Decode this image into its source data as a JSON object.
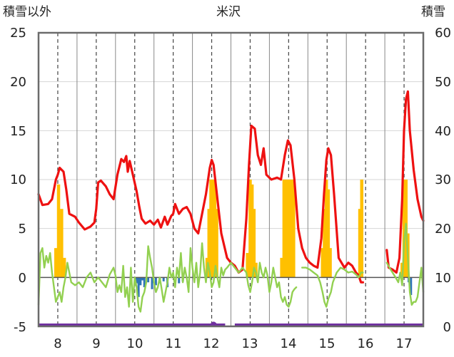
{
  "chart_data": {
    "type": "line",
    "title": "米沢",
    "y_left_label": "積雪以外",
    "y_right_label": "積雪",
    "y_left_range": [
      -5,
      25
    ],
    "y_right_range": [
      0,
      60
    ],
    "y_left_ticks": [
      "25",
      "20",
      "15",
      "10",
      "5",
      "0",
      "-5"
    ],
    "y_right_ticks": [
      "60",
      "50",
      "40",
      "30",
      "20",
      "10",
      "0"
    ],
    "x_range": [
      7.5,
      17.5
    ],
    "x_ticks": [
      "8",
      "9",
      "10",
      "11",
      "12",
      "13",
      "14",
      "15",
      "16",
      "17"
    ],
    "grid": true,
    "colors": {
      "temperature": "#ee1111",
      "wind": "#92d050",
      "snow_depth": "#ffc000",
      "precipitation": "#2e75b6",
      "bottom_series": "#7030a0"
    },
    "series": [
      {
        "key": "temperature",
        "axis": "left",
        "points": [
          [
            7.5,
            8.5
          ],
          [
            7.6,
            7.4
          ],
          [
            7.75,
            7.5
          ],
          [
            7.85,
            8.0
          ],
          [
            7.95,
            10.0
          ],
          [
            8.0,
            10.5
          ],
          [
            8.05,
            11.2
          ],
          [
            8.15,
            10.8
          ],
          [
            8.22,
            9.0
          ],
          [
            8.3,
            6.5
          ],
          [
            8.45,
            6.2
          ],
          [
            8.55,
            5.6
          ],
          [
            8.7,
            4.9
          ],
          [
            8.85,
            5.2
          ],
          [
            8.95,
            5.6
          ],
          [
            9.0,
            7.0
          ],
          [
            9.05,
            9.7
          ],
          [
            9.12,
            9.9
          ],
          [
            9.25,
            9.3
          ],
          [
            9.35,
            8.5
          ],
          [
            9.45,
            8.0
          ],
          [
            9.55,
            10.5
          ],
          [
            9.65,
            12.1
          ],
          [
            9.72,
            11.8
          ],
          [
            9.78,
            12.4
          ],
          [
            9.82,
            10.8
          ],
          [
            9.87,
            11.9
          ],
          [
            9.95,
            10.5
          ],
          [
            10.05,
            8.8
          ],
          [
            10.12,
            7.2
          ],
          [
            10.18,
            6.0
          ],
          [
            10.28,
            5.5
          ],
          [
            10.4,
            5.8
          ],
          [
            10.5,
            5.4
          ],
          [
            10.6,
            5.9
          ],
          [
            10.68,
            5.1
          ],
          [
            10.78,
            6.2
          ],
          [
            10.85,
            5.4
          ],
          [
            10.95,
            6.3
          ],
          [
            11.0,
            6.5
          ],
          [
            11.05,
            7.5
          ],
          [
            11.15,
            6.5
          ],
          [
            11.25,
            7.0
          ],
          [
            11.35,
            7.2
          ],
          [
            11.45,
            6.5
          ],
          [
            11.55,
            5.0
          ],
          [
            11.65,
            4.5
          ],
          [
            11.75,
            6.5
          ],
          [
            11.85,
            8.5
          ],
          [
            11.95,
            11.2
          ],
          [
            12.0,
            12.0
          ],
          [
            12.05,
            11.5
          ],
          [
            12.15,
            8.0
          ],
          [
            12.25,
            4.5
          ],
          [
            12.4,
            2.0
          ],
          [
            12.5,
            1.5
          ],
          [
            12.6,
            1.2
          ],
          [
            12.7,
            0.5
          ],
          [
            12.8,
            0.8
          ],
          [
            12.9,
            6.0
          ],
          [
            12.97,
            11.5
          ],
          [
            13.03,
            15.5
          ],
          [
            13.12,
            15.2
          ],
          [
            13.2,
            12.5
          ],
          [
            13.28,
            11.5
          ],
          [
            13.35,
            13.2
          ],
          [
            13.42,
            10.5
          ],
          [
            13.55,
            10.0
          ],
          [
            13.7,
            10.2
          ],
          [
            13.8,
            10.0
          ],
          [
            13.9,
            12.5
          ],
          [
            13.98,
            14.0
          ],
          [
            14.05,
            13.5
          ],
          [
            14.15,
            10.0
          ],
          [
            14.25,
            5.0
          ],
          [
            14.35,
            3.0
          ],
          [
            14.45,
            2.0
          ],
          [
            14.55,
            1.5
          ],
          [
            14.65,
            1.2
          ],
          [
            14.75,
            1.0
          ],
          [
            14.85,
            4.0
          ],
          [
            14.92,
            8.5
          ],
          [
            14.98,
            12.0
          ],
          [
            15.03,
            13.2
          ],
          [
            15.1,
            12.5
          ],
          [
            15.18,
            8.5
          ],
          [
            15.3,
            2.0
          ],
          [
            15.45,
            1.0
          ],
          [
            15.55,
            1.5
          ],
          [
            15.65,
            1.2
          ],
          [
            15.75,
            0.5
          ],
          [
            15.82,
            0.2
          ],
          [
            15.88,
            -0.5
          ],
          [
            15.93,
            -0.5
          ]
        ]
      },
      {
        "key": "temperature",
        "axis": "left",
        "points": [
          [
            16.55,
            2.8
          ],
          [
            16.6,
            1.0
          ],
          [
            16.7,
            0.8
          ],
          [
            16.8,
            0.5
          ],
          [
            16.88,
            2.0
          ],
          [
            16.95,
            8.0
          ],
          [
            17.0,
            15.0
          ],
          [
            17.05,
            18.2
          ],
          [
            17.1,
            19.0
          ],
          [
            17.15,
            15.0
          ],
          [
            17.25,
            11.0
          ],
          [
            17.35,
            8.0
          ],
          [
            17.45,
            6.2
          ],
          [
            17.5,
            5.8
          ]
        ]
      },
      {
        "key": "wind",
        "axis": "left",
        "points": [
          [
            7.5,
            -2.8
          ],
          [
            7.55,
            2.5
          ],
          [
            7.6,
            3.0
          ],
          [
            7.65,
            1.0
          ],
          [
            7.7,
            2.2
          ],
          [
            7.75,
            1.5
          ],
          [
            7.8,
            2.5
          ],
          [
            7.85,
            0.5
          ],
          [
            7.9,
            -1.0
          ],
          [
            7.95,
            -2.5
          ],
          [
            8.0,
            -2.0
          ],
          [
            8.05,
            -1.5
          ],
          [
            8.1,
            -2.5
          ],
          [
            8.15,
            -1.0
          ],
          [
            8.2,
            0.0
          ],
          [
            8.25,
            1.5
          ],
          [
            8.3,
            0.5
          ],
          [
            8.35,
            -0.5
          ],
          [
            8.45,
            -0.8
          ],
          [
            8.55,
            -0.5
          ],
          [
            8.65,
            -1.0
          ],
          [
            8.75,
            0.0
          ],
          [
            8.85,
            0.5
          ],
          [
            8.95,
            -0.5
          ],
          [
            9.05,
            0.0
          ],
          [
            9.15,
            -0.5
          ],
          [
            9.25,
            -1.0
          ],
          [
            9.35,
            0.3
          ],
          [
            9.45,
            1.0
          ],
          [
            9.5,
            0.2
          ],
          [
            9.55,
            -1.5
          ],
          [
            9.6,
            -0.8
          ],
          [
            9.65,
            -1.5
          ],
          [
            9.7,
            1.2
          ],
          [
            9.75,
            -2.0
          ],
          [
            9.8,
            -1.0
          ],
          [
            9.85,
            -3.0
          ],
          [
            9.9,
            1.0
          ],
          [
            9.95,
            -2.5
          ],
          [
            10.0,
            0.0
          ],
          [
            10.05,
            -1.0
          ],
          [
            10.1,
            -3.0
          ],
          [
            10.15,
            -3.5
          ],
          [
            10.2,
            -2.0
          ],
          [
            10.25,
            -1.5
          ],
          [
            10.3,
            -0.5
          ],
          [
            10.35,
            3.2
          ],
          [
            10.4,
            2.0
          ],
          [
            10.45,
            1.0
          ],
          [
            10.5,
            -0.5
          ],
          [
            10.55,
            -1.5
          ],
          [
            10.6,
            -1.0
          ],
          [
            10.65,
            0.0
          ],
          [
            10.7,
            -1.2
          ],
          [
            10.75,
            -2.5
          ],
          [
            10.8,
            -1.5
          ],
          [
            10.85,
            -0.5
          ],
          [
            10.9,
            1.0
          ],
          [
            10.95,
            0.0
          ],
          [
            11.0,
            0.5
          ],
          [
            11.05,
            -1.0
          ],
          [
            11.1,
            1.0
          ],
          [
            11.15,
            0.0
          ],
          [
            11.2,
            2.5
          ],
          [
            11.25,
            -0.5
          ],
          [
            11.3,
            1.0
          ],
          [
            11.35,
            0.0
          ],
          [
            11.4,
            -1.5
          ],
          [
            11.45,
            3.0
          ],
          [
            11.5,
            1.0
          ],
          [
            11.55,
            -0.5
          ],
          [
            11.6,
            1.5
          ],
          [
            11.65,
            -1.0
          ],
          [
            11.7,
            0.5
          ],
          [
            11.75,
            3.5
          ],
          [
            11.8,
            1.0
          ],
          [
            11.85,
            -0.5
          ],
          [
            11.9,
            1.5
          ],
          [
            11.95,
            0.5
          ],
          [
            12.0,
            -1.0
          ],
          [
            12.05,
            -0.5
          ],
          [
            12.1,
            1.2
          ],
          [
            12.15,
            0.0
          ],
          [
            12.2,
            -1.0
          ],
          [
            12.25,
            1.0
          ],
          [
            12.3,
            0.2
          ],
          [
            12.35,
            0.8
          ],
          [
            12.4,
            1.0
          ],
          [
            12.5,
            1.5
          ],
          [
            12.6,
            1.0
          ],
          [
            12.7,
            0.5
          ],
          [
            12.8,
            1.0
          ],
          [
            12.9,
            0.5
          ],
          [
            12.95,
            -0.8
          ],
          [
            13.0,
            -1.5
          ],
          [
            13.05,
            -0.5
          ],
          [
            13.1,
            1.0
          ],
          [
            13.15,
            0.5
          ],
          [
            13.2,
            -0.5
          ],
          [
            13.25,
            1.5
          ],
          [
            13.3,
            0.5
          ],
          [
            13.35,
            0.0
          ],
          [
            13.4,
            1.0
          ],
          [
            13.45,
            0.2
          ],
          [
            13.5,
            -1.5
          ],
          [
            13.55,
            -0.5
          ],
          [
            13.6,
            1.0
          ],
          [
            13.65,
            0.0
          ],
          [
            13.7,
            -1.0
          ],
          [
            13.75,
            -0.5
          ],
          [
            13.8,
            -2.0
          ],
          [
            13.85,
            -2.5
          ],
          [
            13.9,
            -2.0
          ],
          [
            13.95,
            -2.8
          ],
          [
            14.0,
            -3.0
          ],
          [
            14.05,
            -2.5
          ],
          [
            14.1,
            -1.5
          ],
          [
            14.15,
            -1.2
          ],
          [
            14.2,
            -1.0
          ]
        ]
      },
      {
        "key": "wind",
        "axis": "left",
        "points": [
          [
            14.35,
            1.0
          ],
          [
            14.45,
            1.0
          ],
          [
            14.55,
            0.8
          ],
          [
            14.65,
            0.5
          ],
          [
            14.75,
            0.2
          ],
          [
            14.82,
            -0.5
          ],
          [
            14.88,
            -1.5
          ],
          [
            14.93,
            -2.5
          ],
          [
            14.98,
            -3.0
          ],
          [
            15.03,
            -2.2
          ],
          [
            15.1,
            -1.5
          ],
          [
            15.15,
            -0.5
          ],
          [
            15.25,
            0.5
          ],
          [
            15.35,
            1.0
          ],
          [
            15.45,
            0.8
          ],
          [
            15.55,
            0.5
          ],
          [
            15.65,
            0.6
          ],
          [
            15.75,
            0.3
          ],
          [
            15.82,
            0.0
          ],
          [
            15.88,
            0.5
          ],
          [
            15.93,
            0.5
          ]
        ]
      },
      {
        "key": "wind",
        "axis": "left",
        "points": [
          [
            16.55,
            1.5
          ],
          [
            16.62,
            1.0
          ],
          [
            16.7,
            0.5
          ],
          [
            16.78,
            0.0
          ],
          [
            16.85,
            -0.5
          ],
          [
            16.9,
            0.5
          ],
          [
            16.95,
            -0.8
          ],
          [
            17.0,
            3.5
          ],
          [
            17.05,
            5.5
          ],
          [
            17.1,
            2.0
          ],
          [
            17.15,
            -1.5
          ],
          [
            17.2,
            -2.8
          ],
          [
            17.25,
            -2.5
          ],
          [
            17.3,
            -2.5
          ],
          [
            17.35,
            -2.0
          ],
          [
            17.4,
            -0.5
          ],
          [
            17.45,
            1.0
          ],
          [
            17.5,
            -1.5
          ]
        ]
      }
    ],
    "snow_depth_axis": "right",
    "snow_depth_bars": [
      [
        7.95,
        16
      ],
      [
        8.02,
        29
      ],
      [
        8.1,
        24
      ],
      [
        8.17,
        14
      ],
      [
        11.88,
        14
      ],
      [
        11.93,
        24
      ],
      [
        11.98,
        30
      ],
      [
        12.03,
        30
      ],
      [
        12.08,
        30
      ],
      [
        12.13,
        24
      ],
      [
        12.93,
        15
      ],
      [
        13.0,
        30
      ],
      [
        13.05,
        29
      ],
      [
        13.1,
        24
      ],
      [
        13.15,
        13
      ],
      [
        13.82,
        14
      ],
      [
        13.88,
        30
      ],
      [
        13.93,
        30
      ],
      [
        13.98,
        30
      ],
      [
        14.03,
        30
      ],
      [
        14.08,
        30
      ],
      [
        14.13,
        30
      ],
      [
        14.88,
        16
      ],
      [
        14.93,
        24
      ],
      [
        14.98,
        30
      ],
      [
        15.03,
        28
      ],
      [
        15.08,
        16
      ],
      [
        15.85,
        24
      ],
      [
        15.9,
        30
      ],
      [
        16.95,
        13
      ],
      [
        17.0,
        30
      ],
      [
        17.05,
        30
      ],
      [
        17.1,
        19
      ]
    ],
    "precipitation_axis": "left",
    "precipitation_bars": [
      [
        10.05,
        -0.6
      ],
      [
        10.1,
        -2.0
      ],
      [
        10.15,
        -0.8
      ],
      [
        10.2,
        -0.3
      ],
      [
        10.25,
        -1.0
      ],
      [
        10.35,
        -0.5
      ],
      [
        10.45,
        -1.2
      ],
      [
        10.55,
        -0.8
      ],
      [
        10.65,
        -0.6
      ],
      [
        10.75,
        -0.4
      ],
      [
        10.85,
        -1.0
      ],
      [
        11.15,
        -0.6
      ],
      [
        11.25,
        -0.4
      ],
      [
        17.12,
        -0.5
      ],
      [
        17.18,
        -1.8
      ]
    ],
    "bottom_series_axis": "left",
    "bottom_series_segments": [
      [
        7.5,
        12.35,
        -5.0
      ],
      [
        12.6,
        17.5,
        -5.0
      ]
    ],
    "bottom_series_peak": [
      12.05,
      -4.4
    ]
  }
}
